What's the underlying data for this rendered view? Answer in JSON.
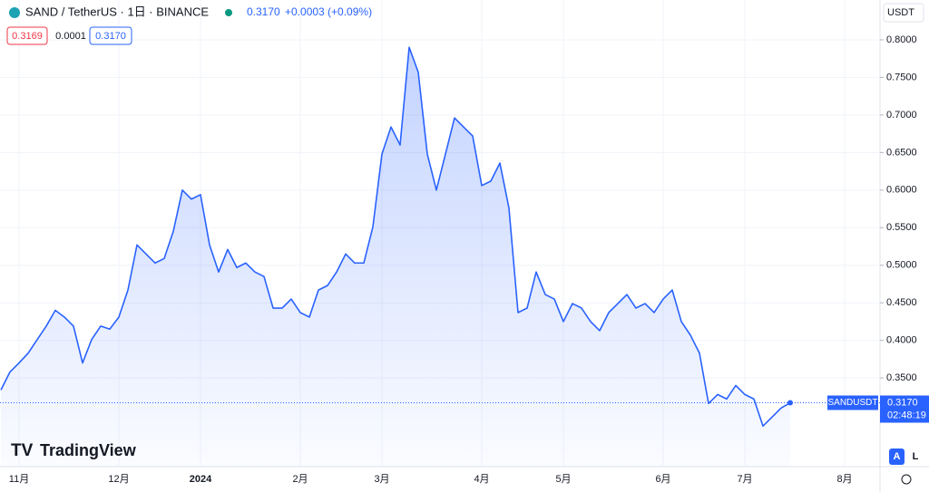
{
  "header": {
    "symbol": "SAND / TetherUS · 1日 · BINANCE",
    "price": "0.3170",
    "change": "+0.0003 (+0.09%)",
    "bid": "0.3169",
    "spread": "0.0001",
    "ask": "0.3170",
    "currency": "USDT"
  },
  "chart_data": {
    "type": "area",
    "categories": [
      null,
      null,
      "11月",
      null,
      null,
      null,
      null,
      null,
      null,
      null,
      null,
      null,
      null,
      "12月",
      null,
      null,
      null,
      null,
      null,
      null,
      null,
      null,
      "2024",
      null,
      null,
      null,
      null,
      null,
      null,
      null,
      null,
      null,
      null,
      "2月",
      null,
      null,
      null,
      null,
      null,
      null,
      null,
      null,
      "3月",
      null,
      null,
      null,
      null,
      null,
      null,
      null,
      null,
      null,
      null,
      "4月",
      null,
      null,
      null,
      null,
      null,
      null,
      null,
      null,
      "5月",
      null,
      null,
      null,
      null,
      null,
      null,
      null,
      null,
      null,
      null,
      "6月",
      null,
      null,
      null,
      null,
      null,
      null,
      null,
      null,
      "7月",
      null,
      null,
      null,
      null,
      null,
      null,
      null,
      null,
      null,
      null,
      "8月",
      null,
      null,
      null
    ],
    "series": [
      {
        "name": "SANDUSDT",
        "color": "#2962ff",
        "values": [
          0.334,
          0.358,
          0.37,
          0.383,
          0.401,
          0.419,
          0.44,
          0.431,
          0.419,
          0.37,
          0.401,
          0.419,
          0.415,
          0.431,
          0.467,
          0.527,
          0.515,
          0.503,
          0.509,
          0.545,
          0.6,
          0.588,
          0.594,
          0.527,
          0.491,
          0.521,
          0.497,
          0.503,
          0.491,
          0.485,
          0.443,
          0.443,
          0.455,
          0.437,
          0.431,
          0.467,
          0.473,
          0.491,
          0.515,
          0.503,
          0.503,
          0.551,
          0.648,
          0.684,
          0.66,
          0.79,
          0.757,
          0.648,
          0.6,
          0.648,
          0.696,
          0.684,
          0.672,
          0.606,
          0.612,
          0.636,
          0.576,
          0.437,
          0.443,
          0.491,
          0.461,
          0.455,
          0.425,
          0.449,
          0.443,
          0.425,
          0.413,
          0.437,
          0.449,
          0.461,
          0.443,
          0.449,
          0.437,
          0.455,
          0.467,
          0.425,
          0.407,
          0.383,
          0.316,
          0.328,
          0.322,
          0.34,
          0.328,
          0.322,
          0.286,
          0.298,
          0.31,
          0.317,
          null,
          null,
          null,
          null,
          null,
          null,
          null,
          null,
          null
        ]
      }
    ],
    "ylim": [
      0.232,
      0.853
    ],
    "yticks": [
      {
        "value": 0.35,
        "label": "0.3500"
      },
      {
        "value": 0.4,
        "label": "0.4000"
      },
      {
        "value": 0.45,
        "label": "0.4500"
      },
      {
        "value": 0.5,
        "label": "0.5000"
      },
      {
        "value": 0.55,
        "label": "0.5500"
      },
      {
        "value": 0.6,
        "label": "0.6000"
      },
      {
        "value": 0.65,
        "label": "0.6500"
      },
      {
        "value": 0.7,
        "label": "0.7000"
      },
      {
        "value": 0.75,
        "label": "0.7500"
      },
      {
        "value": 0.8,
        "label": "0.8000"
      }
    ],
    "grid": true,
    "price_line": {
      "name": "SANDUSDT",
      "value": 0.317,
      "label": "0.3170",
      "countdown": "02:48:19"
    }
  },
  "branding": "TradingView",
  "buttons": [
    "A",
    "L"
  ]
}
